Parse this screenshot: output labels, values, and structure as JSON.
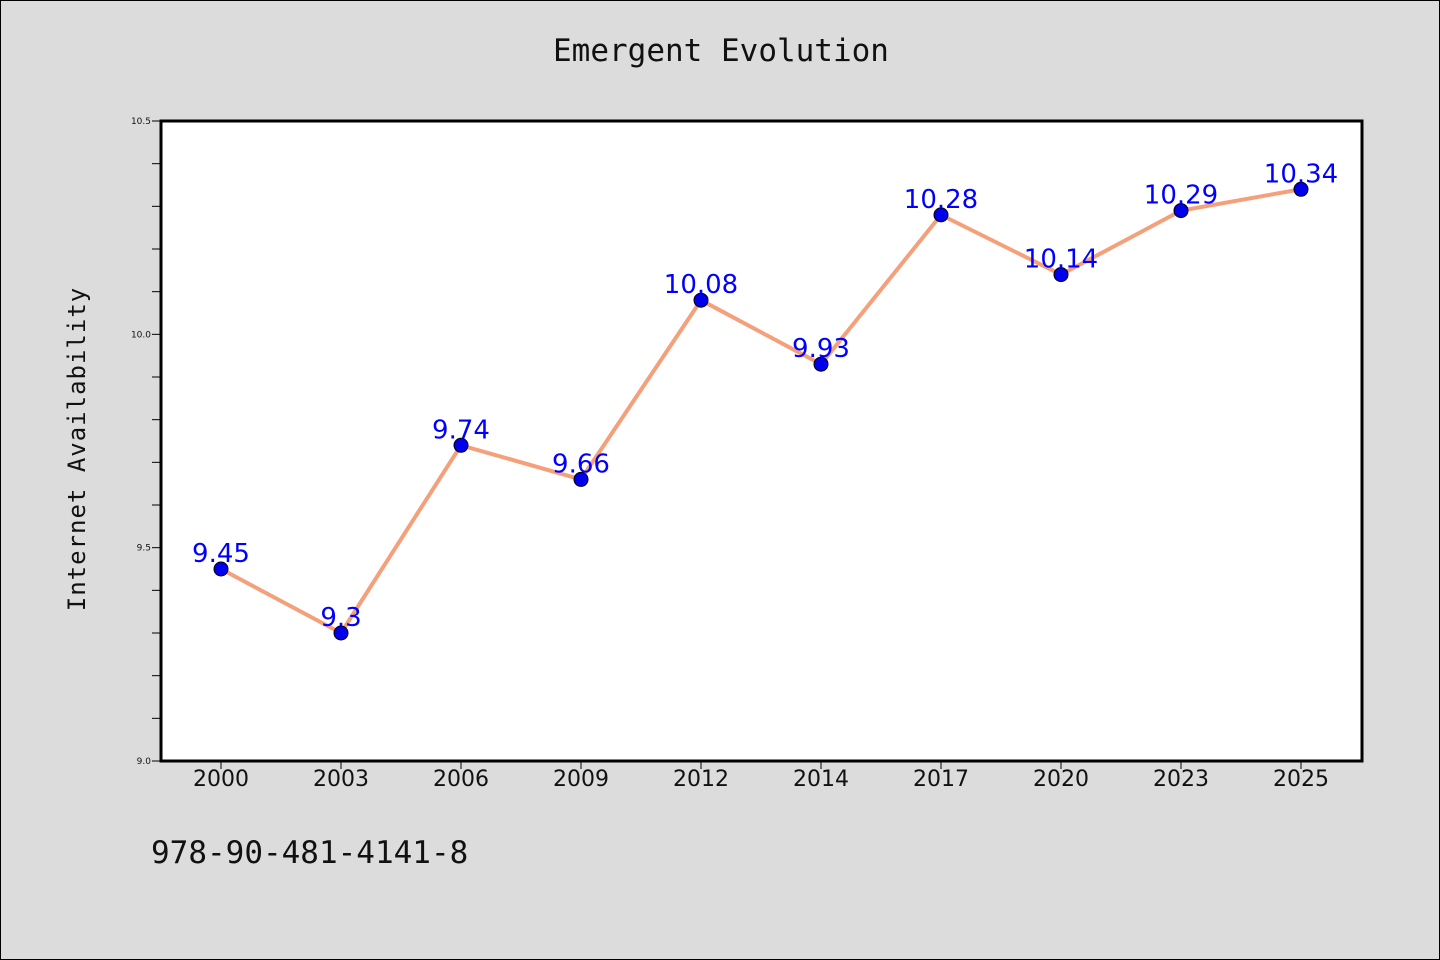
{
  "chart_data": {
    "type": "line",
    "title": "Emergent Evolution",
    "xlabel": "",
    "ylabel": "Internet Availability",
    "categories": [
      "2000",
      "2003",
      "2006",
      "2009",
      "2012",
      "2014",
      "2017",
      "2020",
      "2023",
      "2025"
    ],
    "series": [
      {
        "values": [
          9.45,
          9.3,
          9.74,
          9.66,
          10.08,
          9.93,
          10.28,
          10.14,
          10.29,
          10.34
        ]
      }
    ],
    "data_labels": [
      "9.45",
      "9.3",
      "9.74",
      "9.66",
      "10.08",
      "9.93",
      "10.28",
      "10.14",
      "10.29",
      "10.34"
    ],
    "ylim": [
      9.0,
      10.5
    ],
    "yticks": [
      "9.0",
      "9.5",
      "10.0",
      "10.5"
    ],
    "grid": false,
    "legend": "none"
  },
  "colors": {
    "background": "#dcdcdc",
    "plot_area": "#ffffff",
    "line": "#f4a07a",
    "marker": "#0000ee",
    "data_label": "#0000ff"
  },
  "footer": {
    "text": "978-90-481-4141-8"
  }
}
